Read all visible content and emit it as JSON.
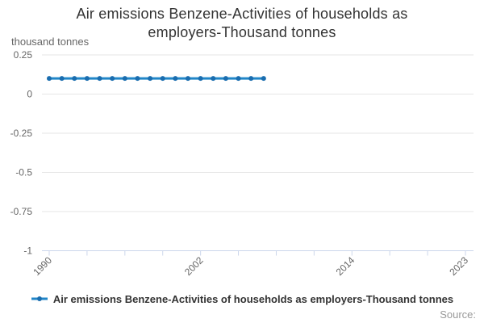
{
  "title_lines": [
    "Air emissions Benzene-Activities of households as",
    "employers-Thousand tonnes"
  ],
  "y_axis_unit": "thousand tonnes",
  "legend": {
    "label": "Air emissions Benzene-Activities of households as employers-Thousand tonnes"
  },
  "credits": "Source:",
  "colors": {
    "series_line": "#2186c8",
    "series_marker": "#1a6daf",
    "grid": "#e6e6e6",
    "axis": "#ccd6eb",
    "tick_label": "#666666",
    "title": "#333333",
    "credits": "#999999"
  },
  "chart_data": {
    "type": "line",
    "title": "Air emissions Benzene-Activities of households as employers-Thousand tonnes",
    "xlabel": "",
    "ylabel": "thousand tonnes",
    "x": [
      1990,
      1991,
      1992,
      1993,
      1994,
      1995,
      1996,
      1997,
      1998,
      1999,
      2000,
      2001,
      2002,
      2003,
      2004,
      2005,
      2006,
      2007
    ],
    "series": [
      {
        "name": "Air emissions Benzene-Activities of households as employers-Thousand tonnes",
        "values": [
          0.1,
          0.1,
          0.1,
          0.1,
          0.1,
          0.1,
          0.1,
          0.1,
          0.1,
          0.1,
          0.1,
          0.1,
          0.1,
          0.1,
          0.1,
          0.1,
          0.1,
          0.1
        ]
      }
    ],
    "xlim": [
      1990,
      2023
    ],
    "ylim": [
      -1,
      0.25
    ],
    "xticks": [
      1990,
      1993,
      1996,
      1999,
      2002,
      2005,
      2008,
      2011,
      2014,
      2017,
      2020,
      2023
    ],
    "xtick_labels": [
      {
        "v": 1990,
        "label": "1990"
      },
      {
        "v": 2002,
        "label": "2002"
      },
      {
        "v": 2014,
        "label": "2014"
      },
      {
        "v": 2023,
        "label": "2023"
      }
    ],
    "yticks": [
      0.25,
      0,
      -0.25,
      -0.5,
      -0.75,
      -1
    ],
    "ytick_labels": [
      "0.25",
      "0",
      "-0.25",
      "-0.5",
      "-0.75",
      "-1"
    ],
    "grid": true,
    "legend_position": "bottom",
    "marker": "circle"
  }
}
